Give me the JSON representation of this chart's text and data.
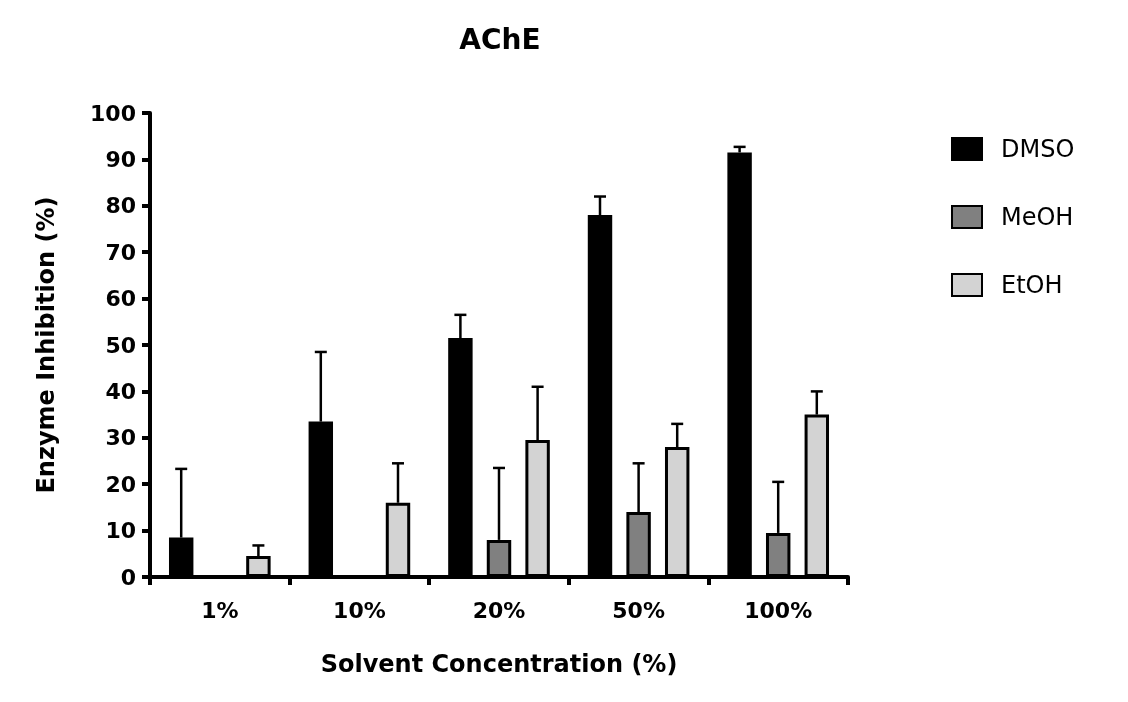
{
  "chart_data": {
    "type": "bar",
    "title": "AChE",
    "xlabel": "Solvent Concentration (%)",
    "ylabel": "Enzyme Inhibition (%)",
    "categories": [
      "1%",
      "10%",
      "20%",
      "50%",
      "100%"
    ],
    "series": [
      {
        "name": "DMSO",
        "color": "#000000",
        "values": [
          8.5,
          33.5,
          51.5,
          78,
          91.5
        ],
        "errors": [
          [
            8.5,
            23.3
          ],
          [
            33.5,
            48.5
          ],
          [
            51.5,
            56.5
          ],
          [
            78,
            82
          ],
          [
            91.5,
            92.7
          ]
        ]
      },
      {
        "name": "MeOH",
        "color": "#808080",
        "values": [
          null,
          null,
          8,
          14,
          9.5
        ],
        "errors": [
          null,
          null,
          [
            8,
            23.5
          ],
          [
            14,
            24.5
          ],
          [
            9.5,
            20.5
          ]
        ]
      },
      {
        "name": "EtOH",
        "color": "#d3d3d3",
        "values": [
          4.5,
          16,
          29.5,
          28,
          35
        ],
        "errors": [
          [
            4.5,
            6.8
          ],
          [
            16,
            24.5
          ],
          [
            29.5,
            41
          ],
          [
            28,
            33
          ],
          [
            35,
            40
          ]
        ]
      }
    ],
    "ylim": [
      0,
      100
    ],
    "yticks": [
      0,
      10,
      20,
      30,
      40,
      50,
      60,
      70,
      80,
      90,
      100
    ],
    "grid": false,
    "legend": "top right"
  }
}
